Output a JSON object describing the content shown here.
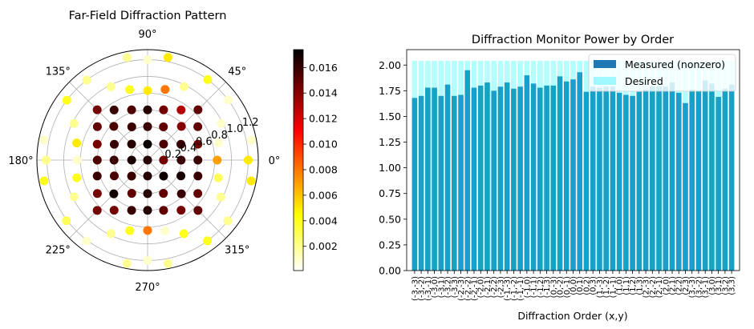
{
  "chart_data": [
    {
      "type": "scatter",
      "projection": "polar",
      "title": "Far-Field Diffraction Pattern",
      "theta_ticks": [
        "0°",
        "45°",
        "90°",
        "135°",
        "180°",
        "225°",
        "270°",
        "315°"
      ],
      "r_ticks": [
        "0.2",
        "0.4",
        "0.6",
        "0.8",
        "1.0",
        "1.2"
      ],
      "r_tick_values": [
        0.2,
        0.4,
        0.6,
        0.8,
        1.0,
        1.2
      ],
      "rlim": [
        0,
        1.32
      ],
      "grid": true,
      "colormap": "hot_r",
      "colorbar": {
        "ticks": [
          "0.002",
          "0.004",
          "0.006",
          "0.008",
          "0.010",
          "0.012",
          "0.014",
          "0.016"
        ],
        "tick_values": [
          0.002,
          0.004,
          0.006,
          0.008,
          0.01,
          0.012,
          0.014,
          0.016
        ],
        "range": [
          0.0001,
          0.0174
        ]
      },
      "points_theta_r_value": [
        [
          135,
          0.85,
          0.0145
        ],
        [
          123.7,
          0.72,
          0.016
        ],
        [
          107.6,
          0.63,
          0.0155
        ],
        [
          90,
          0.6,
          0.0165
        ],
        [
          72.4,
          0.63,
          0.0145
        ],
        [
          56.3,
          0.72,
          0.013
        ],
        [
          45,
          0.85,
          0.015
        ],
        [
          146.3,
          0.72,
          0.015
        ],
        [
          135,
          0.57,
          0.0155
        ],
        [
          115.4,
          0.44,
          0.016
        ],
        [
          90,
          0.4,
          0.016
        ],
        [
          64.6,
          0.44,
          0.015
        ],
        [
          45,
          0.57,
          0.014
        ],
        [
          33.7,
          0.72,
          0.015
        ],
        [
          162.4,
          0.63,
          0.0145
        ],
        [
          154.6,
          0.44,
          0.016
        ],
        [
          135,
          0.27,
          0.0165
        ],
        [
          90,
          0.19,
          0.0172
        ],
        [
          45,
          0.27,
          0.0155
        ],
        [
          25.4,
          0.44,
          0.016
        ],
        [
          17.6,
          0.63,
          0.0145
        ],
        [
          180,
          0.6,
          0.0155
        ],
        [
          180,
          0.4,
          0.016
        ],
        [
          180,
          0.19,
          0.0168
        ],
        [
          0,
          0,
          0.0165
        ],
        [
          0,
          0.19,
          0.0145
        ],
        [
          0,
          0.4,
          0.016
        ],
        [
          0,
          0.6,
          0.016
        ],
        [
          197.6,
          0.63,
          0.016
        ],
        [
          205.4,
          0.44,
          0.0155
        ],
        [
          225,
          0.27,
          0.016
        ],
        [
          270,
          0.19,
          0.0165
        ],
        [
          315,
          0.27,
          0.017
        ],
        [
          334.6,
          0.44,
          0.0168
        ],
        [
          342.4,
          0.63,
          0.016
        ],
        [
          213.7,
          0.72,
          0.0145
        ],
        [
          225,
          0.57,
          0.017
        ],
        [
          244.6,
          0.44,
          0.015
        ],
        [
          270,
          0.4,
          0.0165
        ],
        [
          295.4,
          0.44,
          0.015
        ],
        [
          315,
          0.57,
          0.016
        ],
        [
          326.3,
          0.72,
          0.015
        ],
        [
          225,
          0.85,
          0.0145
        ],
        [
          236.3,
          0.72,
          0.0145
        ],
        [
          252.4,
          0.63,
          0.016
        ],
        [
          270,
          0.6,
          0.0165
        ],
        [
          287.6,
          0.63,
          0.015
        ],
        [
          303.7,
          0.72,
          0.0145
        ],
        [
          315,
          0.85,
          0.015
        ],
        [
          101.3,
          1.25,
          0.002
        ],
        [
          90,
          1.2,
          0.001
        ],
        [
          78.8,
          1.25,
          0.005
        ],
        [
          127.2,
          1.2,
          0.002
        ],
        [
          53.3,
          1.2,
          0.004
        ],
        [
          116.6,
          0.98,
          0.002
        ],
        [
          63.6,
          0.98,
          0.002
        ],
        [
          104.3,
          0.87,
          0.004
        ],
        [
          90,
          0.83,
          0.005
        ],
        [
          76.1,
          0.87,
          0.008
        ],
        [
          143.4,
          1.2,
          0.004
        ],
        [
          153.5,
          0.98,
          0.002
        ],
        [
          169,
          1.26,
          0.001
        ],
        [
          166.4,
          0.87,
          0.005
        ],
        [
          180,
          1.21,
          0.002
        ],
        [
          180,
          0.84,
          0.001
        ],
        [
          194,
          0.87,
          0.004
        ],
        [
          191.4,
          1.26,
          0.004
        ],
        [
          206.6,
          0.98,
          0.002
        ],
        [
          216.8,
          1.21,
          0.003
        ],
        [
          233,
          1.21,
          0.001
        ],
        [
          243.5,
          0.98,
          0.002
        ],
        [
          255.8,
          0.87,
          0.004
        ],
        [
          270,
          0.84,
          0.008
        ],
        [
          283.8,
          0.87,
          0.001
        ],
        [
          296.2,
          0.98,
          0.004
        ],
        [
          306.5,
          1.2,
          0.004
        ],
        [
          258.7,
          1.26,
          0.002
        ],
        [
          270,
          1.2,
          0.001
        ],
        [
          281.1,
          1.26,
          0.002
        ],
        [
          322.8,
          1.2,
          0.002
        ],
        [
          333.2,
          0.98,
          0.002
        ],
        [
          345.9,
          0.87,
          0.003
        ],
        [
          348.6,
          1.26,
          0.005
        ],
        [
          0,
          0.83,
          0.007
        ],
        [
          0,
          1.2,
          0.005
        ],
        [
          13.7,
          0.87,
          0.001
        ],
        [
          11,
          1.26,
          0.001
        ],
        [
          26.6,
          0.98,
          0.001
        ],
        [
          36.8,
          1.2,
          0.001
        ]
      ]
    },
    {
      "type": "bar",
      "title": "Diffraction Monitor Power by Order",
      "xlabel": "Diffraction Order (x,y)",
      "ylabel": "",
      "ylim": [
        0,
        2.15
      ],
      "yticks": [
        "0.00",
        "0.25",
        "0.50",
        "0.75",
        "1.00",
        "1.25",
        "1.50",
        "1.75",
        "2.00"
      ],
      "ytick_values": [
        0,
        0.25,
        0.5,
        0.75,
        1.0,
        1.25,
        1.5,
        1.75,
        2.0
      ],
      "categories": [
        "(-3,-3)",
        "(-3,-2)",
        "(-3,-1)",
        "(-3,0)",
        "(-3,1)",
        "(-3,2)",
        "(-3,3)",
        "(-2,-3)",
        "(-2,-2)",
        "(-2,-1)",
        "(-2,0)",
        "(-2,1)",
        "(-2,2)",
        "(-2,3)",
        "(-1,-3)",
        "(-1,-2)",
        "(-1,-1)",
        "(-1,0)",
        "(-1,1)",
        "(-1,2)",
        "(-1,3)",
        "(0,-3)",
        "(0,-2)",
        "(0,-1)",
        "(0,0)",
        "(0,1)",
        "(0,2)",
        "(0,3)",
        "(1,-3)",
        "(1,-2)",
        "(1,-1)",
        "(1,0)",
        "(1,1)",
        "(1,2)",
        "(1,3)",
        "(2,-3)",
        "(2,-2)",
        "(2,-1)",
        "(2,0)",
        "(2,1)",
        "(2,2)",
        "(2,3)",
        "(3,-3)",
        "(3,-2)",
        "(3,-1)",
        "(3,0)",
        "(3,1)",
        "(3,2)",
        "(3,3)"
      ],
      "series": [
        {
          "name": "Measured (nonzero)",
          "color": "#17a0c8",
          "legend_color": "#1f77b4",
          "values": [
            1.68,
            1.7,
            1.78,
            1.78,
            1.7,
            1.81,
            1.7,
            1.71,
            1.95,
            1.78,
            1.8,
            1.83,
            1.75,
            1.79,
            1.83,
            1.77,
            1.79,
            1.9,
            1.82,
            1.78,
            1.8,
            1.8,
            1.89,
            1.84,
            1.86,
            1.93,
            1.74,
            1.79,
            1.78,
            1.79,
            1.79,
            1.73,
            1.71,
            1.7,
            1.74,
            1.76,
            1.79,
            1.79,
            1.79,
            1.83,
            1.73,
            1.63,
            1.76,
            1.75,
            1.85,
            1.82,
            1.69,
            1.77,
            1.81
          ]
        },
        {
          "name": "Desired",
          "color": "#b3ffff",
          "value_all": 2.04
        }
      ],
      "legend": "top-right"
    }
  ]
}
